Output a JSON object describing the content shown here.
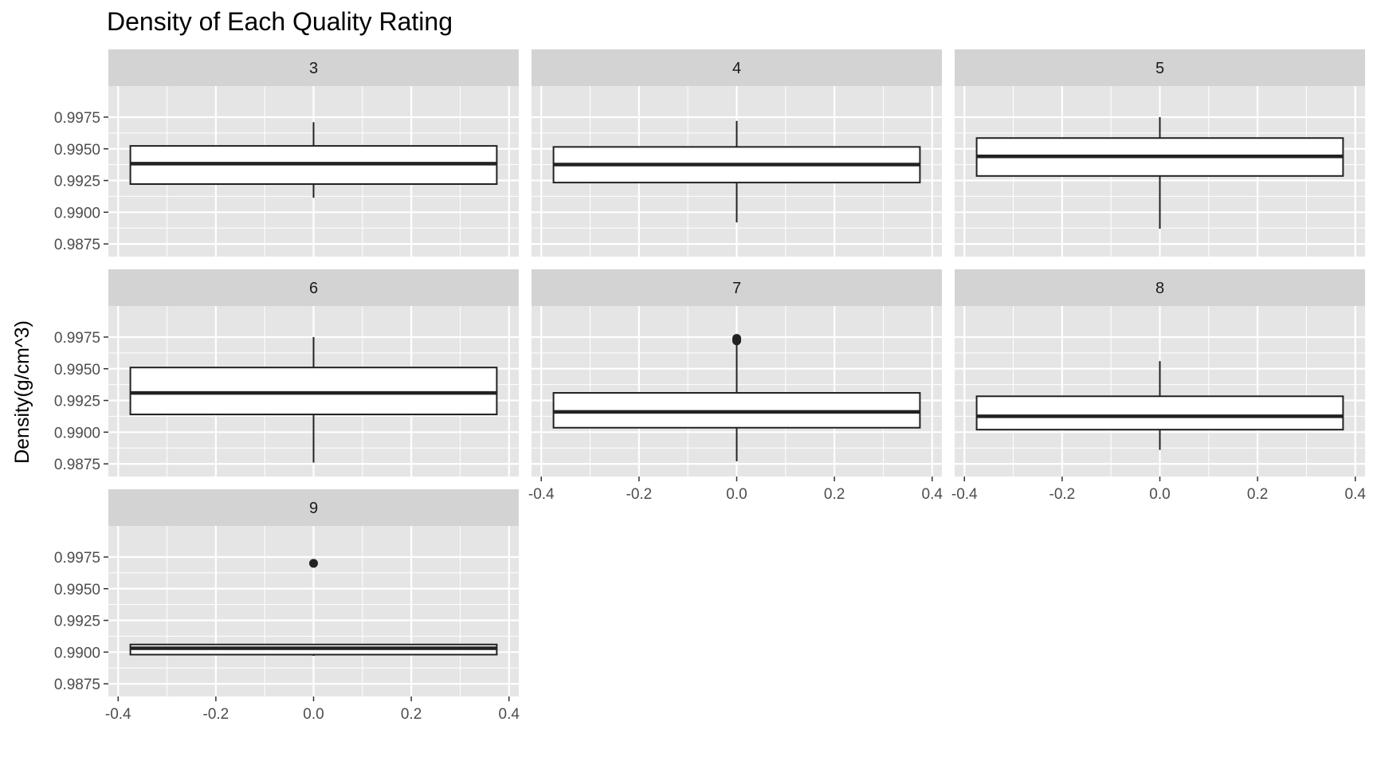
{
  "chart_data": {
    "type": "boxplot",
    "title": "Density of Each Quality Rating",
    "xlabel": "",
    "ylabel": "Density(g/cm^3)",
    "xlim": [
      -0.42,
      0.42
    ],
    "ylim": [
      0.9865,
      0.99995
    ],
    "x_ticks": [
      -0.4,
      -0.2,
      0.0,
      0.2,
      0.4
    ],
    "x_tick_labels": [
      "-0.4",
      "-0.2",
      "0.0",
      "0.2",
      "0.4"
    ],
    "y_ticks": [
      0.9875,
      0.99,
      0.9925,
      0.995,
      0.9975
    ],
    "y_tick_labels": [
      "0.9875",
      "0.9900",
      "0.9925",
      "0.9950",
      "0.9975"
    ],
    "facet_cols": 3,
    "box_half_width": 0.375,
    "colors": {
      "panel_bg": "#e5e5e5",
      "strip_bg": "#d3d3d3",
      "grid": "#ffffff",
      "box_fill": "#ffffff",
      "box_line": "#222222"
    },
    "panels": [
      {
        "label": "3",
        "whisker_low": 0.99114,
        "q1": 0.99222,
        "median": 0.99383,
        "q3": 0.99523,
        "whisker_high": 0.9971,
        "outliers": []
      },
      {
        "label": "4",
        "whisker_low": 0.9892,
        "q1": 0.99234,
        "median": 0.99376,
        "q3": 0.99515,
        "whisker_high": 0.9972,
        "outliers": []
      },
      {
        "label": "5",
        "whisker_low": 0.9887,
        "q1": 0.99286,
        "median": 0.9944,
        "q3": 0.99585,
        "whisker_high": 0.9975,
        "outliers": []
      },
      {
        "label": "6",
        "whisker_low": 0.9876,
        "q1": 0.9914,
        "median": 0.99309,
        "q3": 0.9951,
        "whisker_high": 0.9975,
        "outliers": []
      },
      {
        "label": "7",
        "whisker_low": 0.9877,
        "q1": 0.99035,
        "median": 0.9916,
        "q3": 0.9931,
        "whisker_high": 0.997,
        "outliers": [
          0.9972,
          0.9973,
          0.9974
        ]
      },
      {
        "label": "8",
        "whisker_low": 0.9886,
        "q1": 0.9902,
        "median": 0.99125,
        "q3": 0.99283,
        "whisker_high": 0.9956,
        "outliers": []
      },
      {
        "label": "9",
        "whisker_low": 0.9897,
        "q1": 0.9898,
        "median": 0.9903,
        "q3": 0.9906,
        "whisker_high": 0.9906,
        "outliers": [
          0.997
        ]
      }
    ]
  }
}
